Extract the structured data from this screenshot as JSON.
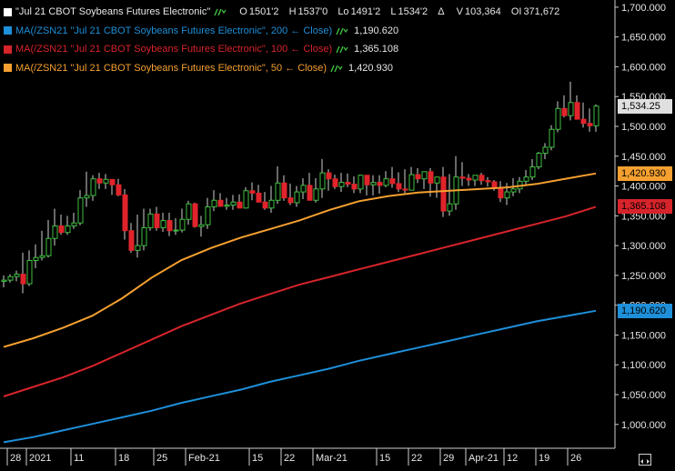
{
  "legend": {
    "symbol": {
      "name": "\"Jul 21 CBOT Soybeans Futures Electronic\"",
      "color": "#ffffff",
      "stats": [
        {
          "label": "O",
          "value": "1501'2"
        },
        {
          "label": "H",
          "value": "1537'0"
        },
        {
          "label": "Lo",
          "value": "1491'2"
        },
        {
          "label": "L",
          "value": "1534'2"
        },
        {
          "label": "Δ",
          "value": ""
        },
        {
          "label": "V",
          "value": "103,364"
        },
        {
          "label": "OI",
          "value": "371,672"
        }
      ]
    },
    "ma200": {
      "name": "MA(/ZSN21 \"Jul 21 CBOT Soybeans Futures Electronic\", 200 ← Close)",
      "value": "1,190.620",
      "color": "#1e8fd8"
    },
    "ma100": {
      "name": "MA(/ZSN21 \"Jul 21 CBOT Soybeans Futures Electronic\", 100 ← Close)",
      "value": "1,365.108",
      "color": "#d7242b"
    },
    "ma50": {
      "name": "MA(/ZSN21 \"Jul 21 CBOT Soybeans Futures Electronic\", 50 ← Close)",
      "value": "1,420.930",
      "color": "#f5a030"
    }
  },
  "price_tags": {
    "last": {
      "value": "1,534.25",
      "bg": "#e0e0e0",
      "fg": "#000000"
    },
    "ma50": {
      "value": "1,420.930",
      "bg": "#f5a030",
      "fg": "#000000"
    },
    "ma100": {
      "value": "1,365.108",
      "bg": "#d7242b",
      "fg": "#000000"
    },
    "ma200": {
      "value": "1,190.620",
      "bg": "#1e8fd8",
      "fg": "#000000"
    }
  },
  "chart_data": {
    "type": "candlestick",
    "y_axis": {
      "ticks": [
        1000,
        1050,
        1100,
        1150,
        1200,
        1250,
        1300,
        1350,
        1400,
        1450,
        1500,
        1550,
        1600,
        1650,
        1700
      ],
      "tick_labels": [
        "1,000.000",
        "1,050.000",
        "1,100.000",
        "1,150.000",
        "1,200.000",
        "1,250.000",
        "1,300.000",
        "1,350.000",
        "1,400.000",
        "1,450.000",
        "1,500.000",
        "1,550.000",
        "1,600.000",
        "1,650.000",
        "1,700.000"
      ],
      "range": [
        960,
        1712
      ],
      "position": "right"
    },
    "x_axis": {
      "labels": [
        "28",
        "2021",
        "11",
        "18",
        "25",
        "Feb-21",
        "15",
        "22",
        "Mar-21",
        "15",
        "22",
        "29",
        "Apr-21",
        "12",
        "19",
        "26"
      ],
      "label_bar_index": [
        1,
        4,
        11,
        18,
        24,
        29,
        39,
        44,
        49,
        59,
        64,
        69,
        73,
        79,
        84,
        89
      ],
      "bar_count": 94
    },
    "candles": {
      "open": [
        1240,
        1242,
        1248,
        1252,
        1236,
        1275,
        1280,
        1283,
        1312,
        1333,
        1322,
        1333,
        1338,
        1380,
        1384,
        1412,
        1405,
        1411,
        1402,
        1385,
        1325,
        1292,
        1300,
        1330,
        1353,
        1330,
        1342,
        1325,
        1326,
        1344,
        1370,
        1332,
        1335,
        1365,
        1376,
        1366,
        1368,
        1373,
        1363,
        1392,
        1388,
        1373,
        1363,
        1376,
        1405,
        1380,
        1372,
        1390,
        1401,
        1376,
        1395,
        1422,
        1412,
        1399,
        1406,
        1403,
        1395,
        1418,
        1402,
        1406,
        1401,
        1412,
        1404,
        1395,
        1393,
        1419,
        1412,
        1424,
        1405,
        1415,
        1358,
        1370,
        1415,
        1413,
        1410,
        1418,
        1409,
        1407,
        1396,
        1380,
        1390,
        1395,
        1408,
        1415,
        1432,
        1455,
        1465,
        1495,
        1530,
        1518,
        1540,
        1512,
        1505,
        1501
      ],
      "high": [
        1250,
        1252,
        1258,
        1288,
        1292,
        1302,
        1325,
        1343,
        1362,
        1352,
        1350,
        1355,
        1393,
        1424,
        1418,
        1422,
        1420,
        1410,
        1412,
        1395,
        1338,
        1352,
        1362,
        1362,
        1365,
        1355,
        1355,
        1346,
        1362,
        1375,
        1372,
        1350,
        1380,
        1393,
        1388,
        1380,
        1385,
        1386,
        1398,
        1406,
        1402,
        1390,
        1400,
        1433,
        1418,
        1404,
        1400,
        1413,
        1422,
        1413,
        1445,
        1428,
        1419,
        1422,
        1421,
        1416,
        1419,
        1414,
        1418,
        1418,
        1425,
        1432,
        1423,
        1428,
        1432,
        1430,
        1422,
        1430,
        1415,
        1432,
        1420,
        1450,
        1440,
        1420,
        1418,
        1422,
        1415,
        1410,
        1408,
        1405,
        1413,
        1415,
        1427,
        1445,
        1457,
        1472,
        1502,
        1542,
        1552,
        1575,
        1552,
        1540,
        1530,
        1537
      ],
      "low": [
        1230,
        1238,
        1240,
        1220,
        1232,
        1262,
        1275,
        1280,
        1300,
        1318,
        1318,
        1328,
        1334,
        1365,
        1375,
        1395,
        1395,
        1385,
        1383,
        1310,
        1288,
        1280,
        1292,
        1325,
        1325,
        1323,
        1316,
        1318,
        1322,
        1335,
        1330,
        1315,
        1328,
        1358,
        1365,
        1360,
        1360,
        1367,
        1362,
        1376,
        1372,
        1360,
        1355,
        1370,
        1375,
        1368,
        1365,
        1378,
        1380,
        1372,
        1380,
        1392,
        1395,
        1390,
        1398,
        1388,
        1388,
        1384,
        1384,
        1387,
        1398,
        1397,
        1390,
        1388,
        1395,
        1405,
        1395,
        1382,
        1380,
        1348,
        1350,
        1360,
        1400,
        1400,
        1400,
        1402,
        1399,
        1392,
        1373,
        1368,
        1383,
        1388,
        1402,
        1410,
        1428,
        1445,
        1460,
        1490,
        1515,
        1510,
        1512,
        1498,
        1491,
        1491
      ],
      "close": [
        1242,
        1248,
        1252,
        1236,
        1275,
        1280,
        1283,
        1312,
        1333,
        1322,
        1333,
        1338,
        1380,
        1384,
        1412,
        1405,
        1411,
        1402,
        1385,
        1325,
        1292,
        1300,
        1330,
        1353,
        1330,
        1342,
        1325,
        1326,
        1344,
        1370,
        1332,
        1335,
        1365,
        1376,
        1366,
        1368,
        1373,
        1363,
        1392,
        1388,
        1373,
        1363,
        1376,
        1405,
        1380,
        1372,
        1390,
        1401,
        1376,
        1395,
        1422,
        1412,
        1399,
        1406,
        1403,
        1395,
        1418,
        1402,
        1406,
        1401,
        1412,
        1404,
        1395,
        1393,
        1419,
        1412,
        1424,
        1405,
        1415,
        1358,
        1370,
        1415,
        1413,
        1410,
        1418,
        1409,
        1407,
        1396,
        1380,
        1390,
        1395,
        1408,
        1415,
        1432,
        1455,
        1465,
        1495,
        1530,
        1518,
        1540,
        1512,
        1505,
        1501,
        1534
      ]
    },
    "series": [
      {
        "name": "MA(/ZSN21 \"Jul 21 CBOT Soybeans Futures Electronic\", 200 ← Close)",
        "color": "#1e8fd8",
        "start": 970,
        "end": 1190.62
      },
      {
        "name": "MA(/ZSN21 \"Jul 21 CBOT Soybeans Futures Electronic\", 100 ← Close)",
        "color": "#d7242b",
        "start": 1047,
        "end": 1365.108
      },
      {
        "name": "MA(/ZSN21 \"Jul 21 CBOT Soybeans Futures Electronic\", 50 ← Close)",
        "color": "#f5a030",
        "start": 1130,
        "end": 1420.93
      }
    ],
    "up_color": "#3fbf3f",
    "down_color": "#e0242b",
    "grid": false,
    "legend_position": "top-left"
  }
}
